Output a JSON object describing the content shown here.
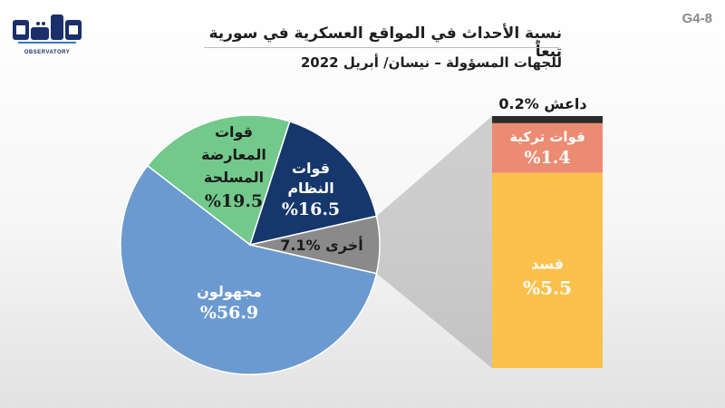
{
  "header": {
    "title_line1": "نسبة الأحداث في المواقع العسكرية في سورية تبعاً",
    "title_line2": "للجهات المسؤولة – نيسان/ أبريل 2022",
    "figure_code": "G4-8",
    "logo_text": "مرصد",
    "logo_subtext": "OBSERVATORY"
  },
  "colors": {
    "unknown": "#6b9ad0",
    "opposition": "#72c98b",
    "regime": "#15376b",
    "other": "#8a8a8a",
    "sdf": "#fbc14c",
    "turkish": "#ec8b73",
    "isis": "#2b2b2b"
  },
  "chart_data": [
    {
      "type": "pie",
      "slices": [
        {
          "name": "مجهولون",
          "value": 56.9,
          "color_key": "unknown",
          "label_value": "%56.9"
        },
        {
          "name": "قوات المعارضة المسلحة",
          "label_lines": [
            "قوات",
            "المعارضة",
            "المسلحة"
          ],
          "value": 19.5,
          "color_key": "opposition",
          "label_value": "%19.5"
        },
        {
          "name": "قوات النظام",
          "label_lines": [
            "قوات",
            "النظام"
          ],
          "value": 16.5,
          "color_key": "regime",
          "label_value": "%16.5"
        },
        {
          "name": "أخرى",
          "value": 7.1,
          "color_key": "other",
          "label_value": "%7.1"
        }
      ]
    },
    {
      "type": "bar",
      "stacked": true,
      "breakdown_of": "أخرى",
      "segments": [
        {
          "name": "قسد",
          "value": 5.5,
          "color_key": "sdf",
          "label_value": "%5.5"
        },
        {
          "name": "قوات تركية",
          "value": 1.4,
          "color_key": "turkish",
          "label_value": "%1.4"
        },
        {
          "name": "داعش",
          "value": 0.2,
          "color_key": "isis",
          "label_value": "%0.2"
        }
      ]
    }
  ]
}
